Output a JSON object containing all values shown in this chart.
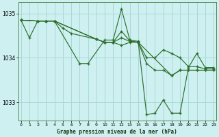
{
  "title": "Graphe pression niveau de la mer (hPa)",
  "background_color": "#cef0f0",
  "grid_color": "#a8d8d8",
  "line_color": "#2d6e2d",
  "xlim": [
    -0.3,
    23.3
  ],
  "ylim": [
    1032.58,
    1035.25
  ],
  "yticks": [
    1033,
    1034,
    1035
  ],
  "xticks": [
    0,
    1,
    2,
    3,
    4,
    5,
    6,
    7,
    8,
    9,
    10,
    11,
    12,
    13,
    14,
    15,
    16,
    17,
    18,
    19,
    20,
    21,
    22,
    23
  ],
  "line1_x": [
    0,
    1,
    2,
    3,
    4,
    7,
    8,
    10,
    11,
    12,
    13,
    14,
    15,
    16,
    17,
    18,
    19,
    20,
    21,
    22,
    23
  ],
  "line1_y": [
    1034.85,
    1034.45,
    1034.83,
    1034.83,
    1034.83,
    1033.87,
    1033.87,
    1034.4,
    1034.4,
    1035.1,
    1034.4,
    1034.37,
    1032.72,
    1032.75,
    1033.05,
    1032.75,
    1032.75,
    1033.78,
    1034.1,
    1033.78,
    1033.78
  ],
  "line2_x": [
    0,
    2,
    3,
    4,
    5,
    6,
    9,
    10,
    11,
    12,
    13,
    14,
    15,
    16,
    17,
    18,
    19,
    20,
    21,
    22,
    23
  ],
  "line2_y": [
    1034.85,
    1034.83,
    1034.83,
    1034.83,
    1034.67,
    1034.55,
    1034.42,
    1034.35,
    1034.35,
    1034.6,
    1034.38,
    1034.35,
    1034.0,
    1034.0,
    1034.18,
    1034.1,
    1034.0,
    1033.8,
    1033.8,
    1033.75,
    1033.75
  ],
  "line3_x": [
    0,
    2,
    3,
    4,
    9,
    10,
    11,
    12,
    13,
    14,
    15,
    16,
    17,
    18,
    19,
    20,
    21,
    22,
    23
  ],
  "line3_y": [
    1034.85,
    1034.83,
    1034.83,
    1034.83,
    1034.42,
    1034.35,
    1034.35,
    1034.45,
    1034.37,
    1034.35,
    1033.87,
    1033.72,
    1033.72,
    1033.6,
    1033.72,
    1033.72,
    1033.72,
    1033.72,
    1033.72
  ],
  "line4_x": [
    0,
    2,
    3,
    4,
    9,
    10,
    11,
    12,
    13,
    14,
    18,
    19,
    20,
    21,
    22,
    23
  ],
  "line4_y": [
    1034.85,
    1034.83,
    1034.83,
    1034.83,
    1034.42,
    1034.35,
    1034.35,
    1034.28,
    1034.35,
    1034.35,
    1033.6,
    1033.72,
    1033.72,
    1033.72,
    1033.72,
    1033.72
  ]
}
